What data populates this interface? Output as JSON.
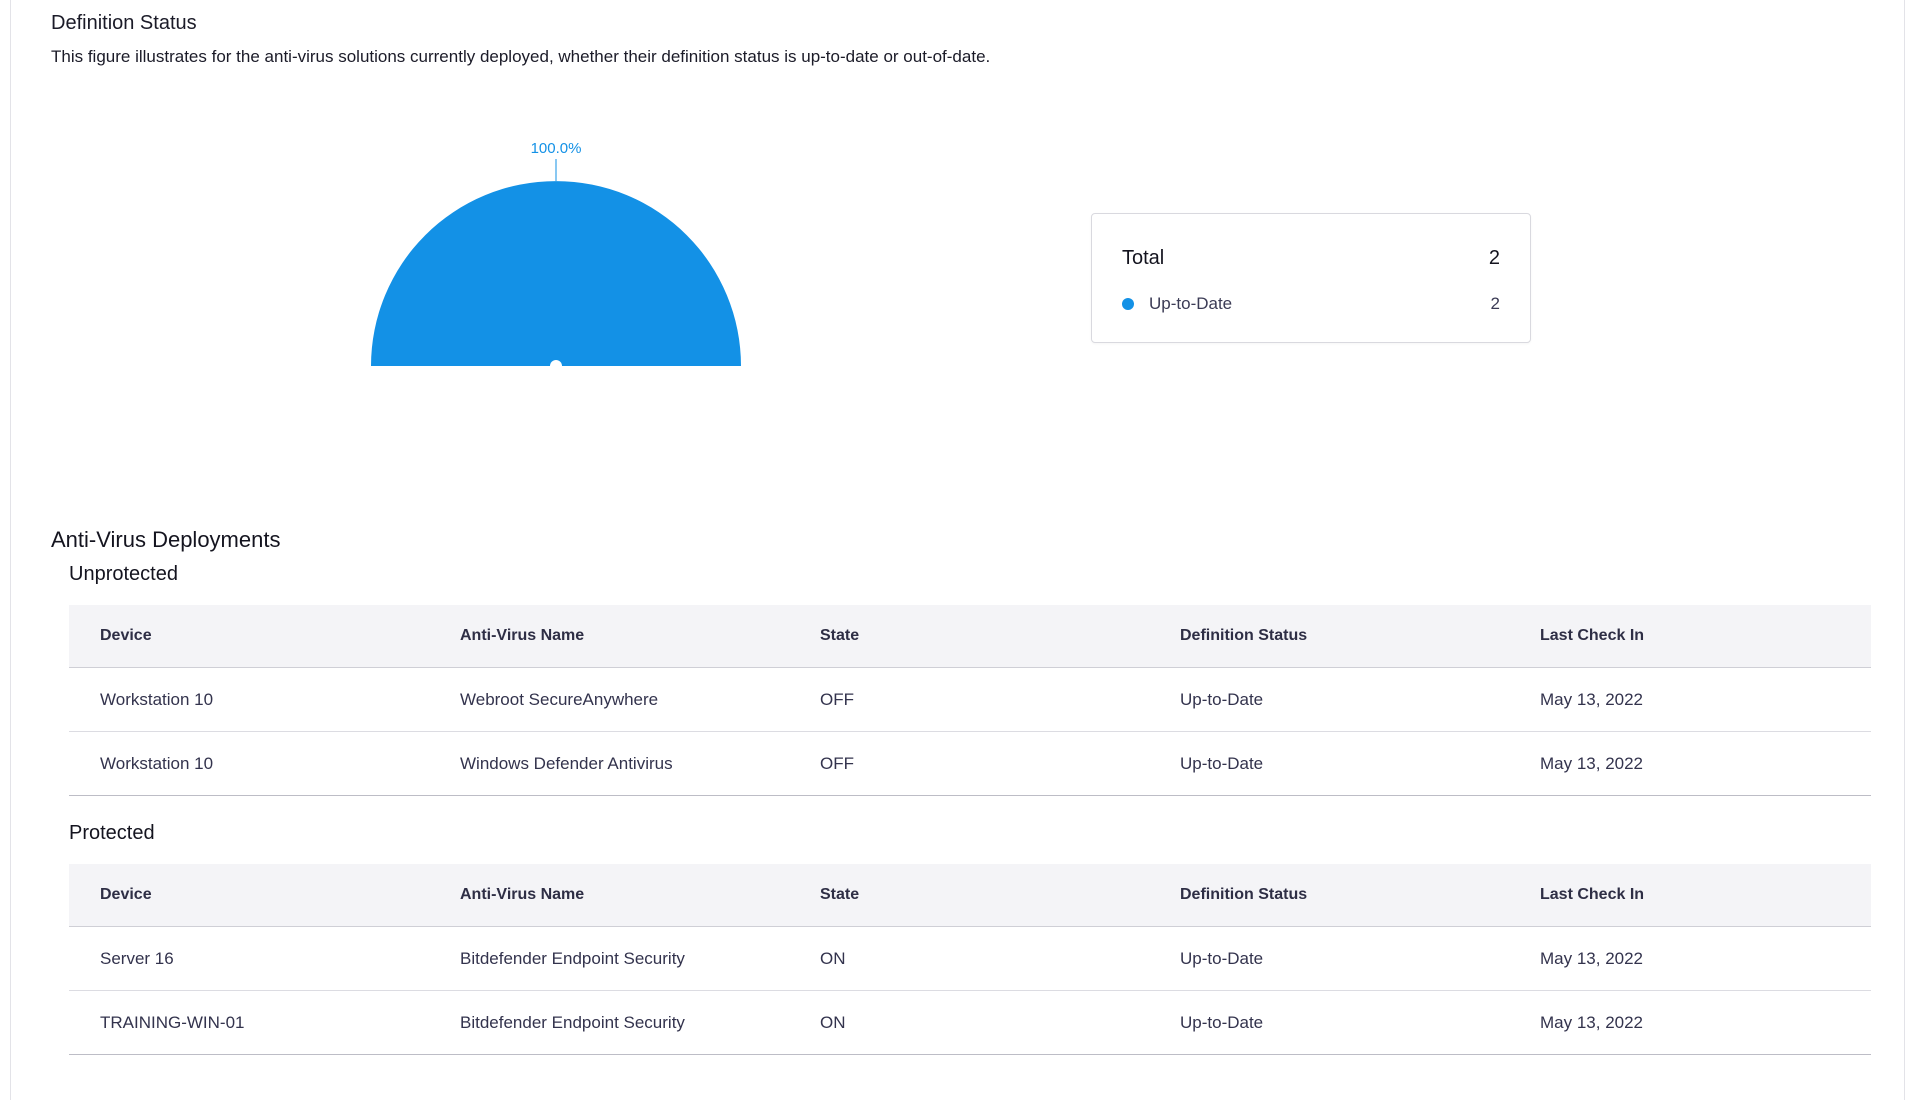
{
  "definition_status": {
    "title": "Definition Status",
    "description": "This figure illustrates for the anti-virus solutions currently deployed, whether their definition status is up-to-date or out-of-date."
  },
  "chart_data": {
    "type": "pie",
    "categories": [
      "Up-to-Date"
    ],
    "values": [
      2
    ],
    "data_labels": [
      "100.0%"
    ],
    "colors": [
      "#1391e6"
    ]
  },
  "legend": {
    "total_label": "Total",
    "total_value": "2",
    "items": [
      {
        "label": "Up-to-Date",
        "value": "2",
        "color": "#1391e6"
      }
    ]
  },
  "deployments": {
    "title": "Anti-Virus Deployments",
    "columns": [
      "Device",
      "Anti-Virus Name",
      "State",
      "Definition Status",
      "Last Check In"
    ],
    "groups": [
      {
        "title": "Unprotected",
        "rows": [
          [
            "Workstation 10",
            "Webroot SecureAnywhere",
            "OFF",
            "Up-to-Date",
            "May 13, 2022"
          ],
          [
            "Workstation 10",
            "Windows Defender Antivirus",
            "OFF",
            "Up-to-Date",
            "May 13, 2022"
          ]
        ]
      },
      {
        "title": "Protected",
        "rows": [
          [
            "Server 16",
            "Bitdefender Endpoint Security",
            "ON",
            "Up-to-Date",
            "May 13, 2022"
          ],
          [
            "TRAINING-WIN-01",
            "Bitdefender Endpoint Security",
            "ON",
            "Up-to-Date",
            "May 13, 2022"
          ]
        ]
      }
    ]
  }
}
